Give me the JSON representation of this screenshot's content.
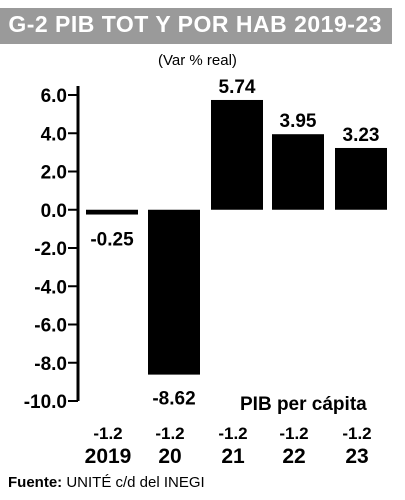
{
  "chart_data": {
    "type": "bar",
    "title": "G-2 PIB TOT Y POR HAB 2019-23",
    "subtitle": "(Var % real)",
    "categories": [
      "2019",
      "20",
      "21",
      "22",
      "23"
    ],
    "series": [
      {
        "name": "",
        "values": [
          -0.25,
          -8.62,
          5.74,
          3.95,
          3.23
        ]
      },
      {
        "name": "PIB per cápita",
        "values": [
          -1.2,
          -1.2,
          -1.2,
          -1.2,
          -1.2
        ]
      }
    ],
    "value_labels": [
      "-0.25",
      "-8.62",
      "5.74",
      "3.95",
      "3.23"
    ],
    "per_capita_labels": [
      "-1.2",
      "-1.2",
      "-1.2",
      "-1.2",
      "-1.2"
    ],
    "yticks": [
      "6.0",
      "4.0",
      "2.0",
      "0.0",
      "-2.0",
      "-4.0",
      "-6.0",
      "-8.0",
      "-10.0"
    ],
    "ytick_values": [
      6,
      4,
      2,
      0,
      -2,
      -4,
      -6,
      -8,
      -10
    ],
    "ylim": [
      -10,
      6
    ],
    "xlabel": "",
    "ylabel": "",
    "grid": false,
    "bar_color": "#000000",
    "title_bg": "#9a9a9a"
  },
  "per_capita_note": "PIB per cápita",
  "source": {
    "label": "Fuente:",
    "text": " UNITÉ c/d del INEGI"
  }
}
